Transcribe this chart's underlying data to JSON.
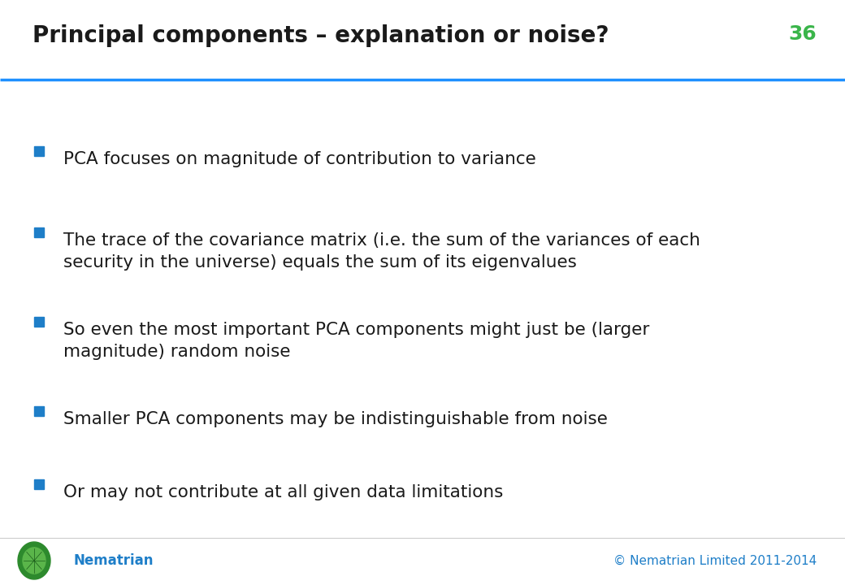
{
  "title": "Principal components – explanation or noise?",
  "slide_number": "36",
  "title_color": "#1a1a1a",
  "title_fontsize": 20,
  "slide_number_color": "#3ab54a",
  "slide_number_fontsize": 18,
  "line_color": "#1e90ff",
  "background_color": "#ffffff",
  "bullet_color": "#1e7ec8",
  "bullet_text_color": "#1a1a1a",
  "bullet_fontsize": 15.5,
  "footer_color": "#1e7ec8",
  "footer_fontsize": 11,
  "bullets": [
    "PCA focuses on magnitude of contribution to variance",
    "The trace of the covariance matrix (i.e. the sum of the variances of each\nsecurity in the universe) equals the sum of its eigenvalues",
    "So even the most important PCA components might just be (larger\nmagnitude) random noise",
    "Smaller PCA components may be indistinguishable from noise",
    "Or may not contribute at all given data limitations"
  ],
  "copyright_text": "© Nematrian Limited 2011-2014",
  "brand_text": "Nematrian"
}
